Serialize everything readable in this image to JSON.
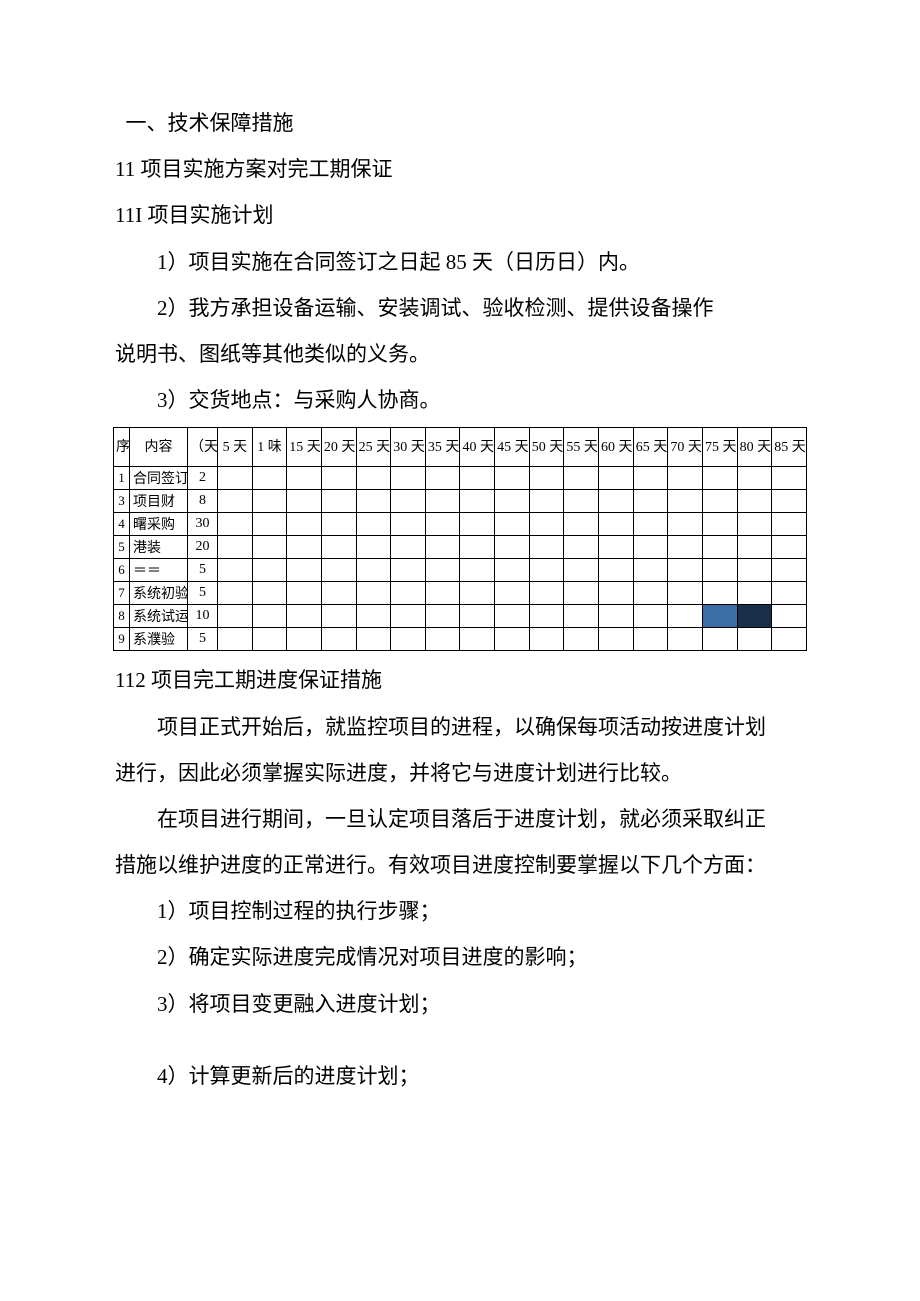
{
  "headings": {
    "h1": "一、技术保障措施",
    "h11": "11 项目实施方案对完工期保证",
    "h11I": "11I 项目实施计划",
    "h112": "112 项目完工期进度保证措施"
  },
  "paras": {
    "p1": "1）项目实施在合同签订之日起 85 天（日历日）内。",
    "p2a": "2）我方承担设备运输、安装调试、验收检测、提供设备操作",
    "p2b": "说明书、图纸等其他类似的义务。",
    "p3": "3）交货地点：与采购人协商。",
    "p4a": "项目正式开始后，就监控项目的进程，以确保每项活动按进度计划",
    "p4b": "进行，因此必须掌握实际进度，并将它与进度计划进行比较。",
    "p5a": "在项目进行期间，一旦认定项目落后于进度计划，就必须采取纠正",
    "p5b": "措施以维护进度的正常进行。有效项目进度控制要掌握以下几个方面：",
    "p6": "1）项目控制过程的执行步骤；",
    "p7": "2）确定实际进度完成情况对项目进度的影响；",
    "p8": "3）将项目变更融入进度计划；",
    "p9": "4）计算更新后的进度计划；"
  },
  "gantt": {
    "columns": {
      "idx": "序",
      "idx2": "",
      "name": "内容",
      "dur": "（天）",
      "days": [
        "5 天",
        "1 味",
        "15 天",
        "20 天",
        "25 天",
        "30 天",
        "35 天",
        "40 天",
        "45 天",
        "50 天",
        "55 天",
        "60 天",
        "65 天",
        "70 天",
        "75 天",
        "80 天",
        "85 天"
      ]
    },
    "rows": [
      {
        "idx": "1",
        "name": "合同签订",
        "dur": "2",
        "bars": []
      },
      {
        "idx": "3",
        "name": "项目财",
        "dur": "8",
        "bars": []
      },
      {
        "idx": "4",
        "name": "曙采购",
        "dur": "30",
        "bars": []
      },
      {
        "idx": "5",
        "name": "港装",
        "dur": "20",
        "bars": []
      },
      {
        "idx": "6",
        "name": "＝＝",
        "dur": "5",
        "bars": []
      },
      {
        "idx": "7",
        "name": "系统初验",
        "dur": "5",
        "bars": []
      },
      {
        "idx": "8",
        "name": "系统试运",
        "dur": "10",
        "bars": [
          {
            "col": 14,
            "cls": "bar-blue"
          },
          {
            "col": 15,
            "cls": "bar-dark"
          }
        ]
      },
      {
        "idx": "9",
        "name": "系濮验",
        "dur": "5",
        "bars": []
      }
    ],
    "header_fontsize": 14,
    "body_fontsize": 14,
    "border_color": "#000000",
    "bar_blue": "#3a6ea5",
    "bar_dark": "#1a2f4a",
    "background": "#ffffff"
  },
  "style": {
    "body_font": "SimSun",
    "body_fontsize_pt": 16,
    "line_height": 2.2,
    "text_color": "#000000",
    "page_bg": "#ffffff"
  }
}
